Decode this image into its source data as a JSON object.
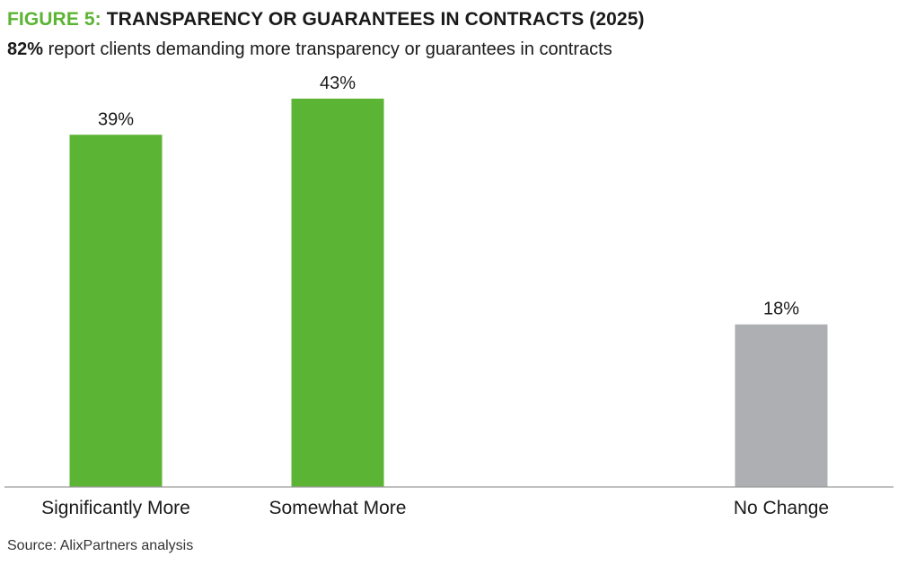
{
  "header": {
    "figure_label": "FIGURE 5:",
    "title": "TRANSPARENCY OR GUARANTEES IN CONTRACTS (2025)",
    "subtitle_highlight": "82%",
    "subtitle_text": "report clients demanding more transparency or guarantees in contracts"
  },
  "footer": {
    "source": "Source: AlixPartners analysis"
  },
  "colors": {
    "accent_green": "#5bb434",
    "neutral_gray": "#aeafb2",
    "axis": "#9a9a9a"
  },
  "chart_data": {
    "type": "bar",
    "categories": [
      "Significantly More",
      "Somewhat More",
      "No Change"
    ],
    "values": [
      39,
      43,
      18
    ],
    "value_labels": [
      "39%",
      "43%",
      "18%"
    ],
    "bar_colors": [
      "#5bb434",
      "#5bb434",
      "#aeafb2"
    ],
    "ylim": [
      0,
      45
    ],
    "grid": false,
    "legend": "none"
  }
}
